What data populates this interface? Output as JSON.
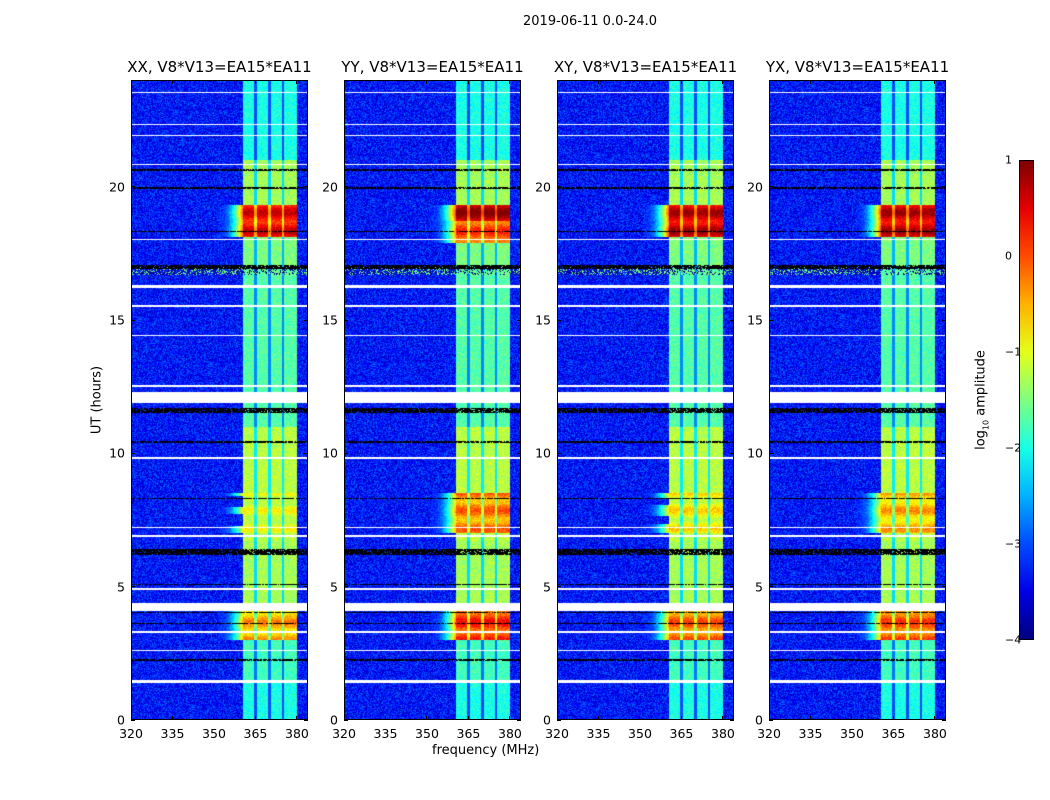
{
  "suptitle": "2019-06-11 0.0-24.0",
  "chart_data": {
    "type": "heatmap",
    "title": "2019-06-11 0.0-24.0",
    "xlabel": "frequency (MHz)",
    "ylabel": "UT (hours)",
    "xlim": [
      320,
      384
    ],
    "ylim": [
      0,
      24
    ],
    "xticks": [
      "320",
      "335",
      "350",
      "365",
      "380"
    ],
    "yticks": [
      "0",
      "5",
      "10",
      "15",
      "20"
    ],
    "colorbar": {
      "label_main": "log",
      "label_sub": "10",
      "label_rest": " amplitude",
      "range": [
        -4,
        1
      ],
      "ticks": [
        "1",
        "0",
        "−1",
        "−2",
        "−3",
        "−4"
      ],
      "colormap": "jet"
    },
    "panels": [
      {
        "title": "XX, V8*V13=EA15*EA11",
        "peaks": [
          [
            3.0,
            4.1,
            -0.5
          ],
          [
            18.1,
            19.3,
            0.4
          ],
          [
            7.0,
            8.5,
            -1.1
          ]
        ]
      },
      {
        "title": "YY, V8*V13=EA15*EA11",
        "peaks": [
          [
            3.0,
            4.1,
            0.1
          ],
          [
            18.7,
            19.3,
            0.8
          ],
          [
            17.9,
            18.7,
            0.0
          ],
          [
            7.0,
            8.5,
            -0.3
          ]
        ]
      },
      {
        "title": "XY, V8*V13=EA15*EA11",
        "peaks": [
          [
            3.0,
            4.1,
            -0.2
          ],
          [
            18.1,
            19.3,
            0.6
          ],
          [
            7.0,
            8.5,
            -0.9
          ]
        ]
      },
      {
        "title": "YX, V8*V13=EA15*EA11",
        "peaks": [
          [
            3.0,
            4.1,
            -0.1
          ],
          [
            18.1,
            19.3,
            0.6
          ],
          [
            7.0,
            8.5,
            -0.6
          ]
        ]
      }
    ],
    "background_level": -3.3,
    "rfi_band_mhz": [
      360.5,
      380
    ],
    "rfi_gaps_mhz": [
      365,
      370,
      375
    ],
    "band_levels": [
      [
        0,
        1.4,
        -2.0
      ],
      [
        1.4,
        3.0,
        -1.8
      ],
      [
        3.0,
        4.1,
        -0.8
      ],
      [
        4.4,
        6.7,
        -1.3
      ],
      [
        6.7,
        11.0,
        -1.2
      ],
      [
        11.0,
        17.0,
        -1.7
      ],
      [
        17.0,
        19.3,
        -1.5
      ],
      [
        19.3,
        21.0,
        -1.3
      ],
      [
        21.0,
        24.0,
        -2.0
      ]
    ],
    "flagged_hours": [
      [
        4.1,
        4.4
      ],
      [
        4.88,
        4.95
      ],
      [
        1.4,
        1.5
      ],
      [
        3.28,
        3.34
      ],
      [
        2.6,
        2.64
      ],
      [
        6.85,
        6.95
      ],
      [
        7.2,
        7.25
      ],
      [
        9.8,
        9.85
      ],
      [
        11.9,
        12.3
      ],
      [
        12.5,
        12.55
      ],
      [
        14.4,
        14.45
      ],
      [
        15.5,
        15.55
      ],
      [
        16.2,
        16.3
      ],
      [
        18.0,
        18.05
      ],
      [
        20.8,
        20.85
      ],
      [
        21.9,
        21.95
      ],
      [
        22.3,
        22.35
      ],
      [
        23.5,
        23.55
      ]
    ],
    "black_hours": [
      [
        6.2,
        6.4
      ],
      [
        11.5,
        11.7
      ],
      [
        19.9,
        20.0
      ],
      [
        16.9,
        17.05
      ],
      [
        2.2,
        2.3
      ],
      [
        3.6,
        3.65
      ],
      [
        4.0,
        4.05
      ],
      [
        5.05,
        5.1
      ],
      [
        8.3,
        8.33
      ],
      [
        10.4,
        10.45
      ],
      [
        18.3,
        18.35
      ],
      [
        20.6,
        20.65
      ]
    ]
  }
}
